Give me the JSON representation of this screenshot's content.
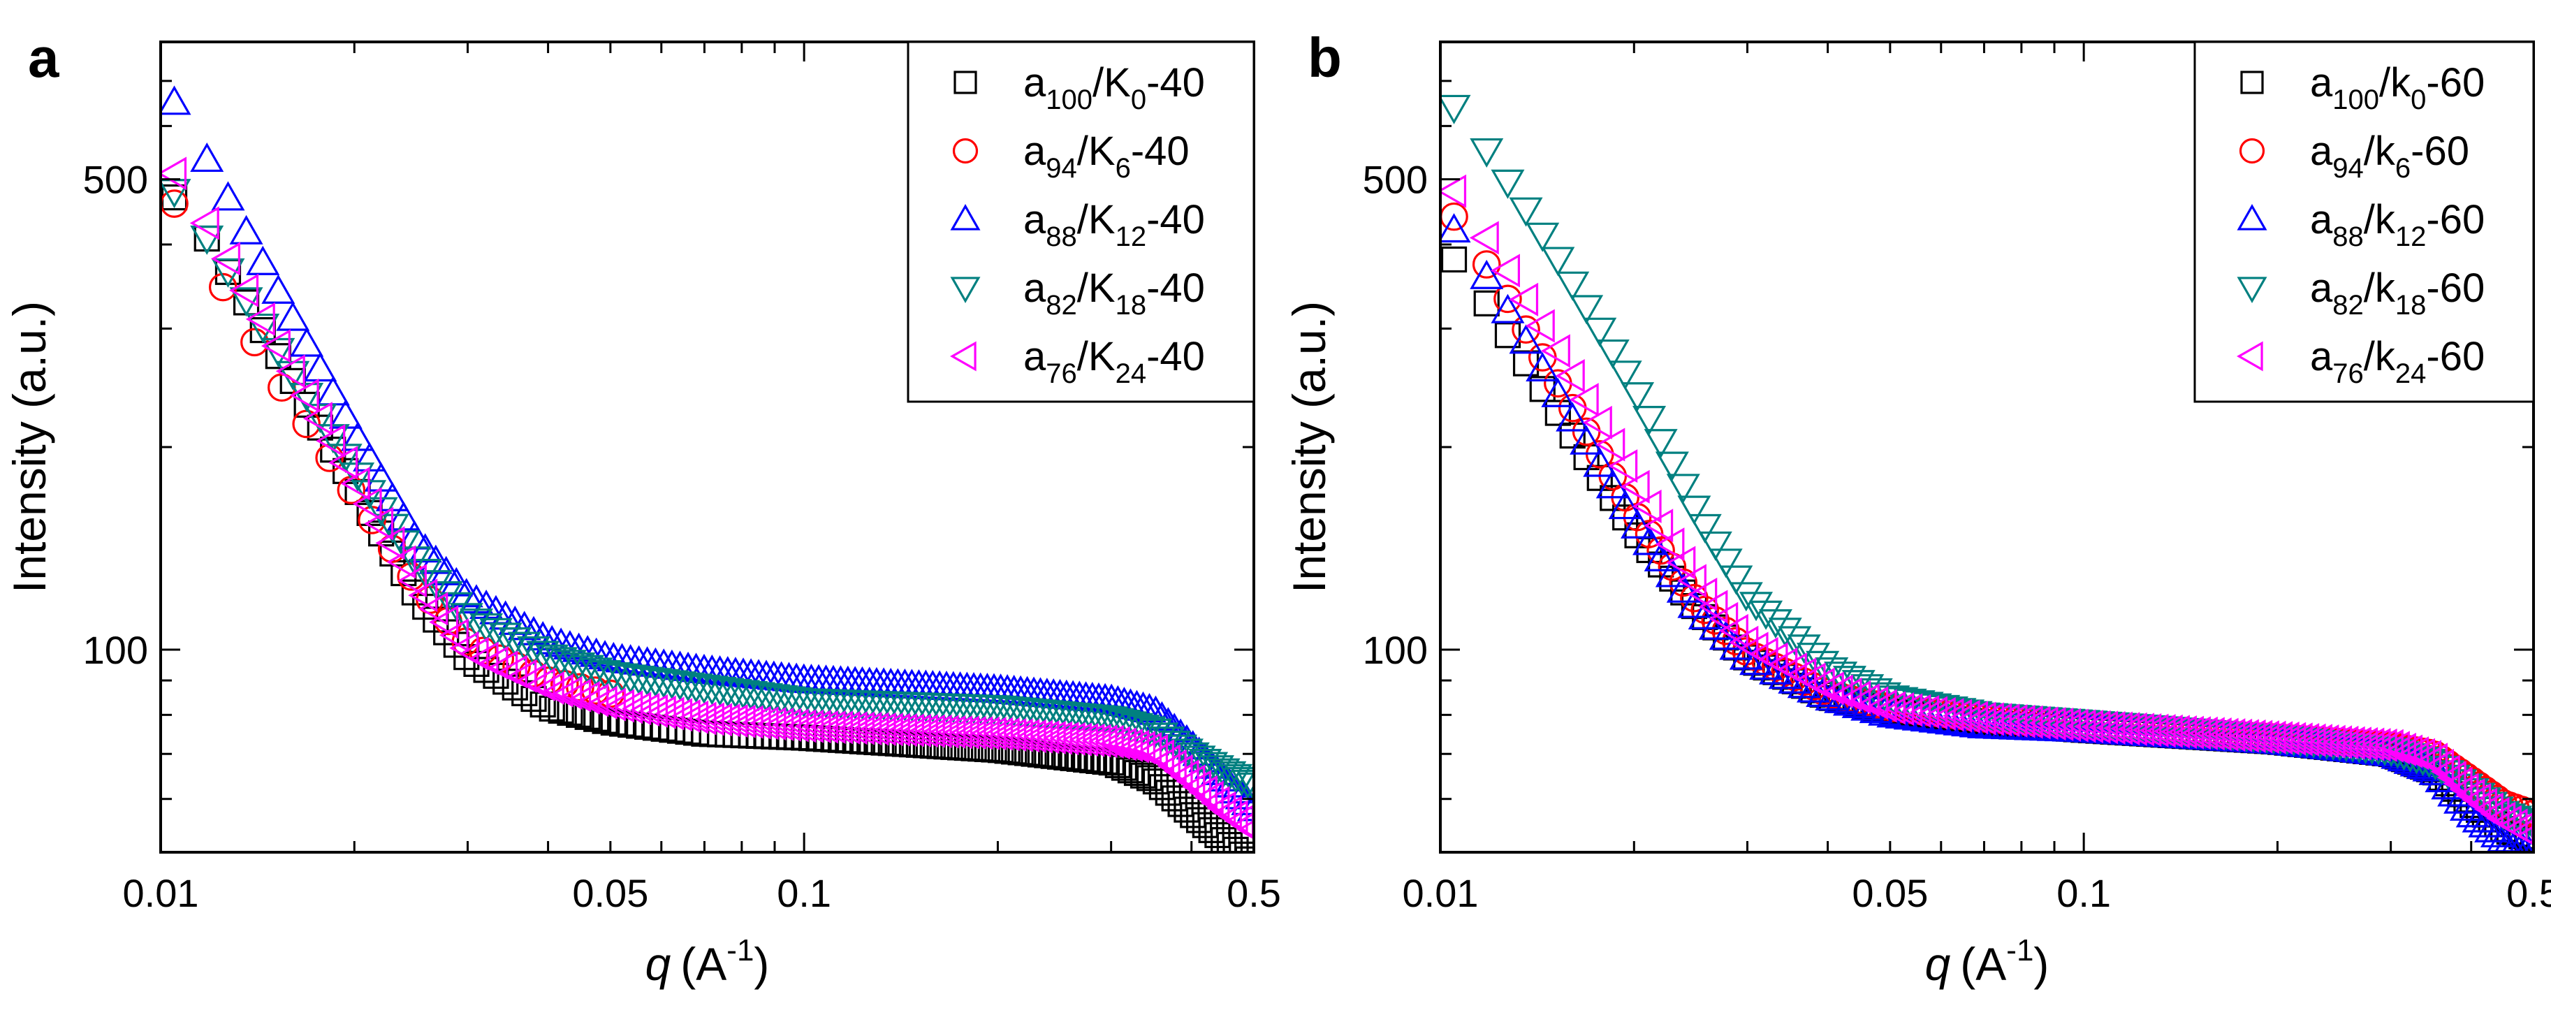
{
  "chart_data": [
    {
      "type": "scatter",
      "panel_label": "a",
      "xscale": "log",
      "yscale": "log",
      "xlim": [
        0.01,
        0.5
      ],
      "ylim": [
        50,
        800
      ],
      "xlabel": "q",
      "xlabel_unit": "(A",
      "xlabel_exp": "-1",
      "xlabel_close": ")",
      "ylabel": "Intensity (a.u.)",
      "x_ticks": [
        {
          "v": 0.01,
          "label": "0.01"
        },
        {
          "v": 0.05,
          "label": "0.05"
        },
        {
          "v": 0.1,
          "label": "0.1"
        },
        {
          "v": 0.5,
          "label": "0.5"
        }
      ],
      "y_ticks": [
        {
          "v": 100,
          "label": "100"
        },
        {
          "v": 500,
          "label": "500"
        }
      ],
      "legend_position": "top-right",
      "series": [
        {
          "name": "a100/K0-40",
          "base": "a",
          "sub1": "100",
          "mid": "/K",
          "sub2": "0",
          "suffix": "-40",
          "marker": "square",
          "color": "#000000",
          "x_start": 0.0105,
          "count": 130,
          "curve": [
            [
              0.0105,
              470
            ],
            [
              0.012,
              400
            ],
            [
              0.015,
              280
            ],
            [
              0.02,
              175
            ],
            [
              0.025,
              120
            ],
            [
              0.03,
              97
            ],
            [
              0.04,
              82
            ],
            [
              0.05,
              78
            ],
            [
              0.07,
              75
            ],
            [
              0.1,
              74
            ],
            [
              0.2,
              71
            ],
            [
              0.3,
              68
            ],
            [
              0.35,
              64
            ],
            [
              0.4,
              57
            ],
            [
              0.45,
              52
            ],
            [
              0.5,
              48
            ]
          ]
        },
        {
          "name": "a94/K6-40",
          "base": "a",
          "sub1": "94",
          "mid": "/K",
          "sub2": "6",
          "suffix": "-40",
          "marker": "circle",
          "color": "#ff0000",
          "x_start": 0.0105,
          "count": 22,
          "curve": [
            [
              0.0105,
              460
            ],
            [
              0.012,
              370
            ],
            [
              0.015,
              255
            ],
            [
              0.02,
              170
            ],
            [
              0.025,
              125
            ],
            [
              0.03,
              102
            ],
            [
              0.04,
              90
            ],
            [
              0.05,
              86
            ]
          ]
        },
        {
          "name": "a88/K12-40",
          "base": "a",
          "sub1": "88",
          "mid": "/K",
          "sub2": "12",
          "suffix": "-40",
          "marker": "triangle-up",
          "color": "#0000ff",
          "x_start": 0.0105,
          "count": 130,
          "curve": [
            [
              0.0105,
              650
            ],
            [
              0.012,
              520
            ],
            [
              0.015,
              350
            ],
            [
              0.02,
              210
            ],
            [
              0.025,
              145
            ],
            [
              0.03,
              120
            ],
            [
              0.04,
              103
            ],
            [
              0.05,
              97
            ],
            [
              0.07,
              93
            ],
            [
              0.1,
              90
            ],
            [
              0.2,
              87
            ],
            [
              0.3,
              84
            ],
            [
              0.35,
              81
            ],
            [
              0.4,
              72
            ],
            [
              0.45,
              64
            ],
            [
              0.5,
              58
            ]
          ]
        },
        {
          "name": "a82/K18-40",
          "base": "a",
          "sub1": "82",
          "mid": "/K",
          "sub2": "18",
          "suffix": "-40",
          "marker": "triangle-down",
          "color": "#008080",
          "x_start": 0.0105,
          "count": 130,
          "curve": [
            [
              0.0105,
              480
            ],
            [
              0.012,
              400
            ],
            [
              0.015,
              285
            ],
            [
              0.02,
              185
            ],
            [
              0.025,
              135
            ],
            [
              0.03,
              112
            ],
            [
              0.04,
              98
            ],
            [
              0.05,
              92
            ],
            [
              0.07,
              88
            ],
            [
              0.1,
              84
            ],
            [
              0.2,
              82
            ],
            [
              0.3,
              79
            ],
            [
              0.35,
              76
            ],
            [
              0.4,
              70
            ],
            [
              0.45,
              66
            ],
            [
              0.5,
              63
            ]
          ]
        },
        {
          "name": "a76/K24-40",
          "base": "a",
          "sub1": "76",
          "mid": "/K",
          "sub2": "24",
          "suffix": "-40",
          "marker": "triangle-left",
          "color": "#ff00ff",
          "x_start": 0.0105,
          "count": 130,
          "curve": [
            [
              0.0105,
              510
            ],
            [
              0.012,
              420
            ],
            [
              0.015,
              290
            ],
            [
              0.02,
              180
            ],
            [
              0.025,
              125
            ],
            [
              0.03,
              100
            ],
            [
              0.04,
              88
            ],
            [
              0.05,
              83
            ],
            [
              0.07,
              79
            ],
            [
              0.1,
              77
            ],
            [
              0.2,
              75
            ],
            [
              0.3,
              73
            ],
            [
              0.35,
              71
            ],
            [
              0.4,
              64
            ],
            [
              0.45,
              58
            ],
            [
              0.5,
              54
            ]
          ]
        }
      ]
    },
    {
      "type": "scatter",
      "panel_label": "b",
      "xscale": "log",
      "yscale": "log",
      "xlim": [
        0.01,
        0.5
      ],
      "ylim": [
        50,
        800
      ],
      "xlabel": "q",
      "xlabel_unit": "(A",
      "xlabel_exp": "-1",
      "xlabel_close": ")",
      "ylabel": "Intensity (a.u.)",
      "x_ticks": [
        {
          "v": 0.01,
          "label": "0.01"
        },
        {
          "v": 0.05,
          "label": "0.05"
        },
        {
          "v": 0.1,
          "label": "0.1"
        },
        {
          "v": 0.5,
          "label": "0.5"
        }
      ],
      "y_ticks": [
        {
          "v": 100,
          "label": "100"
        },
        {
          "v": 500,
          "label": "500"
        }
      ],
      "legend_position": "top-right",
      "series": [
        {
          "name": "a100/k0-60",
          "base": "a",
          "sub1": "100",
          "mid": "/k",
          "sub2": "0",
          "suffix": "-60",
          "marker": "square",
          "color": "#000000",
          "x_start": 0.0105,
          "count": 130,
          "curve": [
            [
              0.0105,
              380
            ],
            [
              0.012,
              320
            ],
            [
              0.015,
              230
            ],
            [
              0.02,
              150
            ],
            [
              0.025,
              115
            ],
            [
              0.03,
              97
            ],
            [
              0.04,
              85
            ],
            [
              0.05,
              81
            ],
            [
              0.07,
              78
            ],
            [
              0.1,
              76
            ],
            [
              0.2,
              73
            ],
            [
              0.3,
              70
            ],
            [
              0.35,
              66
            ],
            [
              0.4,
              59
            ],
            [
              0.45,
              54
            ],
            [
              0.5,
              52
            ]
          ]
        },
        {
          "name": "a94/k6-60",
          "base": "a",
          "sub1": "94",
          "mid": "/k",
          "sub2": "6",
          "suffix": "-60",
          "marker": "circle",
          "color": "#ff0000",
          "x_start": 0.0105,
          "count": 130,
          "curve": [
            [
              0.0105,
              440
            ],
            [
              0.012,
              365
            ],
            [
              0.015,
              255
            ],
            [
              0.02,
              160
            ],
            [
              0.025,
              118
            ],
            [
              0.03,
              99
            ],
            [
              0.04,
              86
            ],
            [
              0.05,
              82
            ],
            [
              0.07,
              79
            ],
            [
              0.1,
              77
            ],
            [
              0.2,
              74
            ],
            [
              0.3,
              72
            ],
            [
              0.35,
              70
            ],
            [
              0.4,
              64
            ],
            [
              0.45,
              59
            ],
            [
              0.5,
              57
            ]
          ]
        },
        {
          "name": "a88/k12-60",
          "base": "a",
          "sub1": "88",
          "mid": "/k",
          "sub2": "12",
          "suffix": "-60",
          "marker": "triangle-up",
          "color": "#0000ff",
          "x_start": 0.0105,
          "count": 130,
          "curve": [
            [
              0.0105,
              420
            ],
            [
              0.012,
              350
            ],
            [
              0.015,
              245
            ],
            [
              0.02,
              155
            ],
            [
              0.025,
              115
            ],
            [
              0.03,
              97
            ],
            [
              0.04,
              85
            ],
            [
              0.05,
              80
            ],
            [
              0.07,
              77
            ],
            [
              0.1,
              76
            ],
            [
              0.2,
              73
            ],
            [
              0.3,
              70
            ],
            [
              0.35,
              66
            ],
            [
              0.4,
              57
            ],
            [
              0.45,
              52
            ],
            [
              0.5,
              50
            ]
          ]
        },
        {
          "name": "a82/k18-60",
          "base": "a",
          "sub1": "82",
          "mid": "/k",
          "sub2": "18",
          "suffix": "-60",
          "marker": "triangle-down",
          "color": "#008080",
          "x_start": 0.0105,
          "count": 130,
          "curve": [
            [
              0.0105,
              640
            ],
            [
              0.012,
              540
            ],
            [
              0.015,
              390
            ],
            [
              0.02,
              245
            ],
            [
              0.025,
              160
            ],
            [
              0.03,
              120
            ],
            [
              0.04,
              94
            ],
            [
              0.05,
              85
            ],
            [
              0.07,
              80
            ],
            [
              0.1,
              78
            ],
            [
              0.2,
              74
            ],
            [
              0.3,
              71
            ],
            [
              0.35,
              68
            ],
            [
              0.4,
              62
            ],
            [
              0.45,
              57
            ],
            [
              0.5,
              55
            ]
          ]
        },
        {
          "name": "a76/k24-60",
          "base": "a",
          "sub1": "76",
          "mid": "/k",
          "sub2": "24",
          "suffix": "-60",
          "marker": "triangle-left",
          "color": "#ff00ff",
          "x_start": 0.0105,
          "count": 130,
          "curve": [
            [
              0.0105,
              480
            ],
            [
              0.012,
              400
            ],
            [
              0.015,
              285
            ],
            [
              0.02,
              178
            ],
            [
              0.025,
              125
            ],
            [
              0.03,
              102
            ],
            [
              0.04,
              88
            ],
            [
              0.05,
              82
            ],
            [
              0.07,
              79
            ],
            [
              0.1,
              77
            ],
            [
              0.2,
              74
            ],
            [
              0.3,
              72
            ],
            [
              0.35,
              69
            ],
            [
              0.4,
              61
            ],
            [
              0.45,
              56
            ],
            [
              0.5,
              53
            ]
          ]
        }
      ]
    }
  ]
}
